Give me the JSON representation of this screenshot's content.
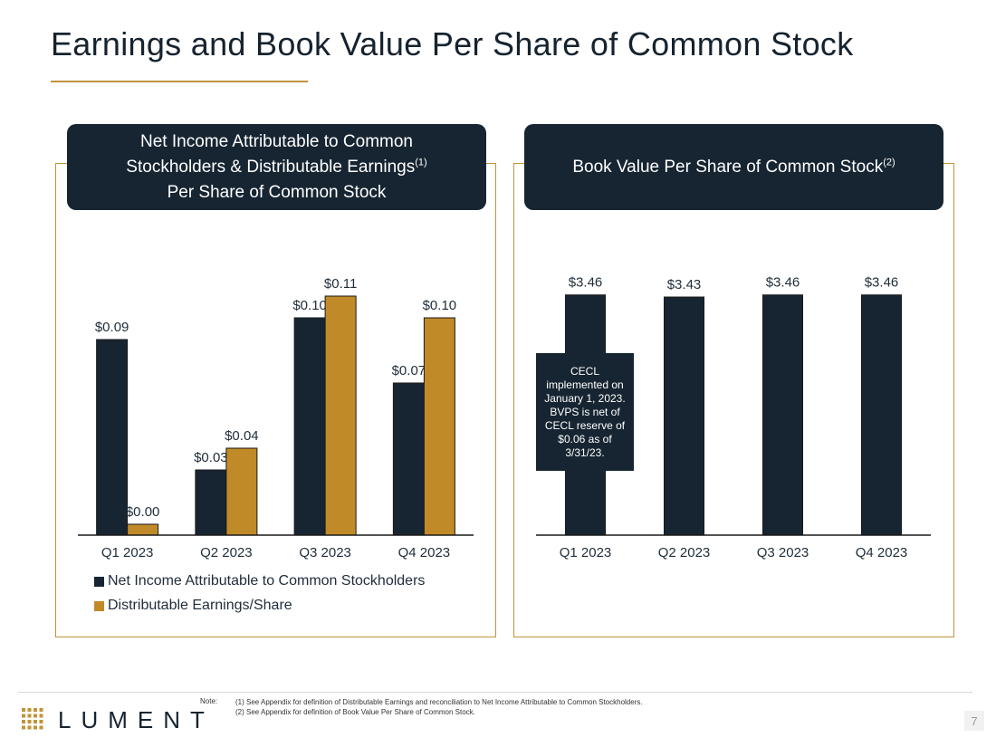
{
  "page": {
    "title": "Earnings and Book Value Per Share of Common Stock",
    "page_number": "7"
  },
  "left_panel": {
    "heading_lines": [
      "Net Income Attributable to Common",
      "Stockholders & Distributable Earnings",
      "Per Share of Common Stock"
    ],
    "heading_sup": "(1)"
  },
  "right_panel": {
    "heading": "Book Value Per Share of Common Stock",
    "heading_sup": "(2)",
    "callout": "CECL implemented on January 1, 2023. BVPS is net of CECL reserve of $0.06 as of 3/31/23."
  },
  "chart_data": [
    {
      "type": "bar",
      "title": "Net Income Attributable to Common Stockholders & Distributable Earnings Per Share of Common Stock",
      "categories": [
        "Q1 2023",
        "Q2 2023",
        "Q3 2023",
        "Q4 2023"
      ],
      "series": [
        {
          "name": "Net Income Attributable to Common Stockholders",
          "values": [
            0.09,
            0.03,
            0.1,
            0.07
          ],
          "labels": [
            "$0.09",
            "$0.03",
            "$0.10",
            "$0.07"
          ],
          "color": "#172532"
        },
        {
          "name": "Distributable Earnings/Share",
          "values": [
            0.005,
            0.04,
            0.11,
            0.1
          ],
          "labels": [
            "$0.00",
            "$0.04",
            "$0.11",
            "$0.10"
          ],
          "color": "#c08a28"
        }
      ],
      "ylim": [
        0,
        0.12
      ],
      "legend": "bottom-left",
      "grid": false
    },
    {
      "type": "bar",
      "title": "Book Value Per Share of Common Stock",
      "categories": [
        "Q1 2023",
        "Q2 2023",
        "Q3 2023",
        "Q4 2023"
      ],
      "series": [
        {
          "name": "Book Value Per Share",
          "values": [
            3.46,
            3.43,
            3.46,
            3.46
          ],
          "labels": [
            "$3.46",
            "$3.43",
            "$3.46",
            "$3.46"
          ],
          "color": "#172532"
        }
      ],
      "ylim": [
        0,
        3.6
      ],
      "grid": false
    }
  ],
  "footer": {
    "logo_text": "LUMENT",
    "note_label": "Note:",
    "note_lines": [
      "(1) See Appendix for definition of Distributable Earnings and reconciliation to Net Income Attributable to Common Stockholders.",
      "(2) See Appendix for definition of Book Value Per Share of Common Stock."
    ]
  }
}
